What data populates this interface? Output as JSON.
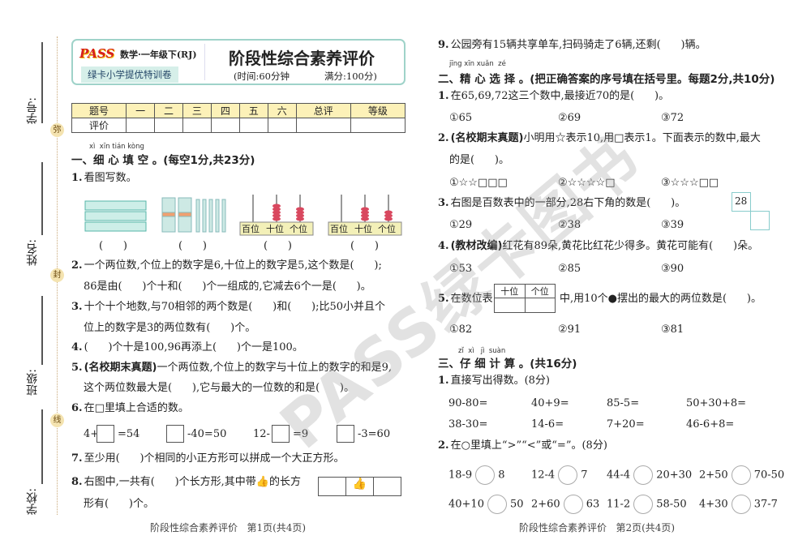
{
  "margin": {
    "fields": [
      "学号:",
      "姓名:",
      "班级:",
      "学校:"
    ],
    "seals": [
      "弥",
      "封",
      "线"
    ]
  },
  "header": {
    "logo": "PASS",
    "subject": "数学·一年级下(RJ)",
    "series": "绿卡小学提优特训卷",
    "title": "阶段性综合素养评价",
    "time": "(时间:60分钟",
    "full": "满分:100分)"
  },
  "score_table": {
    "headers": [
      "题号",
      "一",
      "二",
      "三",
      "四",
      "五",
      "六",
      "总评",
      "等级"
    ],
    "row_label": "评价"
  },
  "section1": {
    "pinyin": "xì  xīn tián kòng",
    "title": "一、细 心 填 空 。(每空1分,共23分)"
  },
  "left": {
    "q1": {
      "n": "1.",
      "text": "看图写数。",
      "paren": "(      )",
      "place_labels": [
        "百位",
        "十位",
        "个位"
      ]
    },
    "q2": {
      "n": "2.",
      "l1": "一个两位数,个位上的数字是6,十位上的数字是5,这个数是(      );",
      "l2": "86是由(      )个十和(      )个一组成的,它减去6个一是(      )。"
    },
    "q3": {
      "n": "3.",
      "l1": "十个十个地数,与70相邻的两个数是(      )和(      );比50小并且个",
      "l2": "位上的数字是3的两位数有(      )个。"
    },
    "q4": {
      "n": "4.",
      "l1": "(      )个十是100,96再添上(      )个一是100。"
    },
    "q5": {
      "n": "5.",
      "tag": "(名校期末真题)",
      "l1": "一个两位数,个位上的数字与十位上的数字的和是9,",
      "l2": "这个两位数最大是(      ),它与最大的一位数的和是(      )。"
    },
    "q6": {
      "n": "6.",
      "l1": "在□里填上合适的数。",
      "eqs": [
        [
          "4+",
          "=54"
        ],
        [
          "",
          "-40=50"
        ],
        [
          "12-",
          "=9"
        ],
        [
          "",
          "-3=60"
        ]
      ]
    },
    "q7": {
      "n": "7.",
      "l1": "至少用(      )个相同的小正方形可以拼成一个大正方形。"
    },
    "q8": {
      "n": "8.",
      "l1a": "右图中,一共有(      )个长方形,其中带",
      "l1b": "的长方",
      "l2": "形有(      )个。"
    }
  },
  "right": {
    "q9": {
      "n": "9.",
      "l1": "公园旁有15辆共享单车,扫码骑走了6辆,还剩(      )辆。"
    },
    "section2": {
      "pinyin": "jīng xīn xuǎn  zé",
      "title": "二、精 心 选 择 。(把正确答案的序号填在括号里。每题2分,共10分)"
    },
    "c1": {
      "n": "1.",
      "l1": "在65,69,72这三个数中,最接近70的是(      )。",
      "opts": [
        "①65",
        "②69",
        "③72"
      ]
    },
    "c2": {
      "n": "2.",
      "tag": "(名校期末真题)",
      "l1": "小明用☆表示10,用□表示1。下面表示的数中,最大",
      "l2": "的是(      )。",
      "opts": [
        "①☆☆□□□",
        "②☆☆☆☆□",
        "③☆☆☆□□"
      ]
    },
    "c3": {
      "n": "3.",
      "l1": "右图是百数表中的一部分,28右下角的数是(      )。",
      "cell": "28",
      "opts": [
        "①29",
        "②38",
        "③39"
      ]
    },
    "c4": {
      "n": "4.",
      "tag": "(教材改编)",
      "l1": "红花有89朵,黄花比红花少得多。黄花可能有(      )朵。",
      "opts": [
        "①53",
        "②85",
        "③90"
      ]
    },
    "c5": {
      "n": "5.",
      "l1a": "在数位表",
      "headers": [
        "十位",
        "个位"
      ],
      "l1b": "中,用10个●摆出的最大的两位数是(      )。",
      "opts": [
        "①82",
        "②91",
        "③81"
      ]
    },
    "section3": {
      "pinyin": "zǐ  xì   jì  suàn",
      "title": "三、仔 细 计 算 。(共16分)"
    },
    "k1": {
      "n": "1.",
      "l1": "直接写出得数。(8分)",
      "rows": [
        [
          "90-80=",
          "40+9=",
          "85-5=",
          "50+30+8="
        ],
        [
          "38-30=",
          "14-6=",
          "7+20=",
          "46-6+8="
        ]
      ]
    },
    "k2": {
      "n": "2.",
      "l1": "在○里填上“>”“<”或“=”。(8分)",
      "pairs": [
        [
          "18-9",
          "8"
        ],
        [
          "12-4",
          "7"
        ],
        [
          "44-4",
          "20+30"
        ],
        [
          "2+50",
          "70-50"
        ],
        [
          "40+10",
          "50"
        ],
        [
          "2+60",
          "63"
        ],
        [
          "11-2",
          "58-50"
        ],
        [
          "4+30",
          "37-7"
        ]
      ]
    }
  },
  "footers": [
    "阶段性综合素养评价   第1页(共4页)",
    "阶段性综合素养评价   第2页(共4页)"
  ],
  "watermark": "PASS绿卡图书",
  "colors": {
    "header_border": "#9fd3c9",
    "series_bg": "#d6efe9",
    "table_header": "#fcf1b8",
    "bead": "#d9485f",
    "logo": "#d6201f"
  }
}
